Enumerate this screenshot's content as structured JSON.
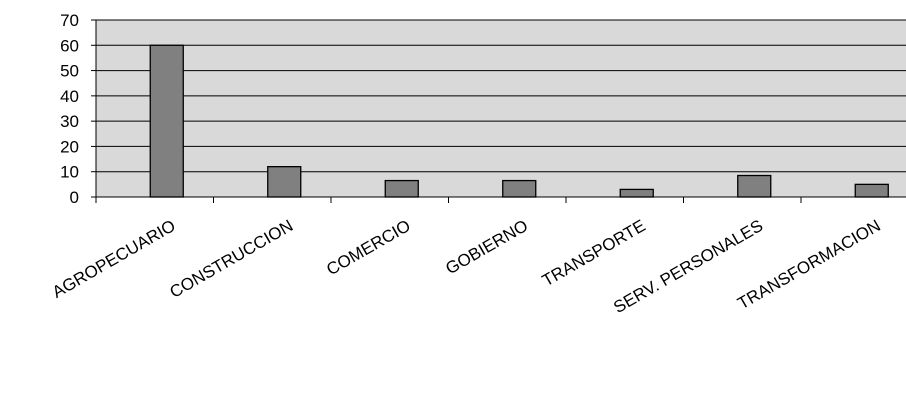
{
  "chart_data": {
    "type": "bar",
    "categories": [
      "AGROPECUARIO",
      "CONSTRUCCION",
      "COMERCIO",
      "GOBIERNO",
      "TRANSPORTE",
      "SERV. PERSONALES",
      "TRANSFORMACION"
    ],
    "values": [
      60,
      12,
      6.5,
      6.5,
      3,
      8.5,
      5
    ],
    "title": "",
    "xlabel": "",
    "ylabel": "",
    "ylim": [
      0,
      70
    ],
    "yticks": [
      "0",
      "10",
      "20",
      "30",
      "40",
      "50",
      "60",
      "70"
    ],
    "grid": true,
    "legend": "none"
  },
  "colors": {
    "plot_background": "#d9d9d9",
    "bar_fill": "#808080",
    "bar_stroke": "#000000",
    "gridline": "#000000",
    "axis": "#000000"
  }
}
